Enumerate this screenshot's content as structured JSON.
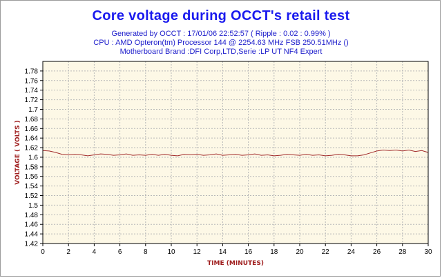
{
  "header": {
    "title": "Core voltage during OCCT's retail test",
    "line1": "Generated by OCCT : 17/01/06 22:52:57 ( Ripple : 0.02 : 0.99% )",
    "line2": "CPU : AMD Opteron(tm) Processor 144    @ 2254.63 MHz FSB 250.51MHz ()",
    "line3": "Motherboard Brand :DFI Corp,LTD,Serie :LP UT NF4 Expert"
  },
  "colors": {
    "title": "#1a1aee",
    "subtitle": "#2020cc",
    "plot_bg": "#fdf8e6",
    "grid": "#b8b8b8",
    "line": "#a02828",
    "axis_label": "#a02020"
  },
  "chart_data": {
    "type": "line",
    "title": "Core voltage during OCCT's retail test",
    "xlabel": "TIME (MINUTES)",
    "ylabel": "VOLTAGE ( VOLTS )",
    "xlim": [
      0,
      30
    ],
    "ylim": [
      1.42,
      1.8
    ],
    "x_ticks": [
      "0",
      "2",
      "4",
      "6",
      "8",
      "10",
      "12",
      "14",
      "16",
      "18",
      "20",
      "22",
      "24",
      "26",
      "28",
      "30"
    ],
    "y_ticks": [
      "1.78",
      "1.76",
      "1.74",
      "1.72",
      "1.7",
      "1.68",
      "1.66",
      "1.64",
      "1.62",
      "1.6",
      "1.58",
      "1.56",
      "1.54",
      "1.52",
      "1.5",
      "1.48",
      "1.46",
      "1.44",
      "1.42"
    ],
    "grid": true,
    "series": [
      {
        "x": [
          0,
          0.5,
          1,
          1.5,
          2,
          2.5,
          3,
          3.5,
          4,
          4.5,
          5,
          5.5,
          6,
          6.5,
          7,
          7.5,
          8,
          8.5,
          9,
          9.5,
          10,
          10.5,
          11,
          11.5,
          12,
          12.5,
          13,
          13.5,
          14,
          14.5,
          15,
          15.5,
          16,
          16.5,
          17,
          17.5,
          18,
          18.5,
          19,
          19.5,
          20,
          20.5,
          21,
          21.5,
          22,
          22.5,
          23,
          23.5,
          24,
          24.5,
          25,
          25.5,
          26,
          26.5,
          27,
          27.5,
          28,
          28.5,
          29,
          29.5,
          30
        ],
        "values": [
          1.614,
          1.613,
          1.61,
          1.606,
          1.605,
          1.606,
          1.605,
          1.603,
          1.605,
          1.607,
          1.606,
          1.604,
          1.605,
          1.607,
          1.604,
          1.605,
          1.604,
          1.606,
          1.604,
          1.606,
          1.604,
          1.603,
          1.606,
          1.605,
          1.606,
          1.604,
          1.605,
          1.607,
          1.604,
          1.605,
          1.606,
          1.604,
          1.605,
          1.607,
          1.604,
          1.605,
          1.603,
          1.604,
          1.606,
          1.605,
          1.604,
          1.606,
          1.604,
          1.605,
          1.603,
          1.604,
          1.606,
          1.605,
          1.603,
          1.603,
          1.605,
          1.609,
          1.613,
          1.615,
          1.614,
          1.615,
          1.613,
          1.615,
          1.612,
          1.614,
          1.61
        ]
      }
    ]
  }
}
